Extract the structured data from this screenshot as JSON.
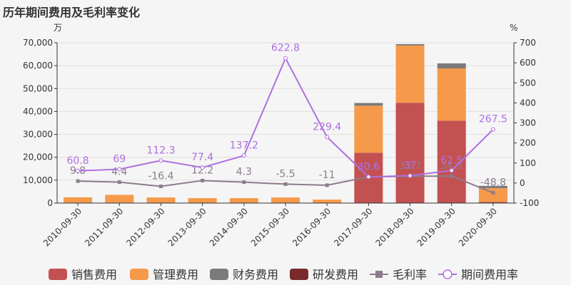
{
  "chart_data": {
    "type": "bar",
    "title": "历年期间费用及毛利率变化",
    "y_left_unit": "万",
    "y_right_unit": "%",
    "categories": [
      "2010-09-30",
      "2011-09-30",
      "2012-09-30",
      "2013-09-30",
      "2014-09-30",
      "2015-09-30",
      "2016-09-30",
      "2017-09-30",
      "2018-09-30",
      "2019-09-30",
      "2020-09-30"
    ],
    "ylim_left": [
      0,
      70000
    ],
    "ylim_right": [
      -100,
      700
    ],
    "left_ticks": [
      "0",
      "10,000",
      "20,000",
      "30,000",
      "40,000",
      "50,000",
      "60,000",
      "70,000"
    ],
    "right_ticks": [
      "-100",
      "0",
      "100",
      "200",
      "300",
      "400",
      "500",
      "600",
      "700"
    ],
    "stacked_series": [
      {
        "name": "销售费用",
        "color": "#c45151",
        "values": [
          200,
          200,
          150,
          150,
          150,
          150,
          100,
          22000,
          43800,
          36000,
          500
        ]
      },
      {
        "name": "管理费用",
        "color": "#f59a4a",
        "values": [
          2300,
          3400,
          2300,
          2000,
          2000,
          2300,
          1400,
          20500,
          25000,
          22800,
          6000
        ]
      },
      {
        "name": "财务费用",
        "color": "#7b7b7b",
        "values": [
          0,
          0,
          0,
          0,
          0,
          0,
          0,
          1200,
          600,
          2200,
          1000
        ]
      },
      {
        "name": "研发费用",
        "color": "#7a2a2a",
        "values": [
          0,
          0,
          0,
          0,
          0,
          0,
          0,
          0,
          0,
          0,
          0
        ]
      }
    ],
    "line_series": [
      {
        "name": "毛利率",
        "color": "#8c7c8c",
        "marker": "square",
        "values": [
          9.8,
          4.4,
          -16.4,
          12.2,
          4.3,
          -5.5,
          -11,
          30.6,
          33.7,
          34.5,
          -48.8
        ]
      },
      {
        "name": "期间费用率",
        "color": "#b070e0",
        "marker": "circle",
        "values": [
          60.8,
          69,
          112.3,
          77.4,
          137.2,
          622.8,
          229.4,
          30.6,
          37,
          62.5,
          267.5
        ]
      }
    ],
    "legend_position": "bottom",
    "grid": true
  }
}
